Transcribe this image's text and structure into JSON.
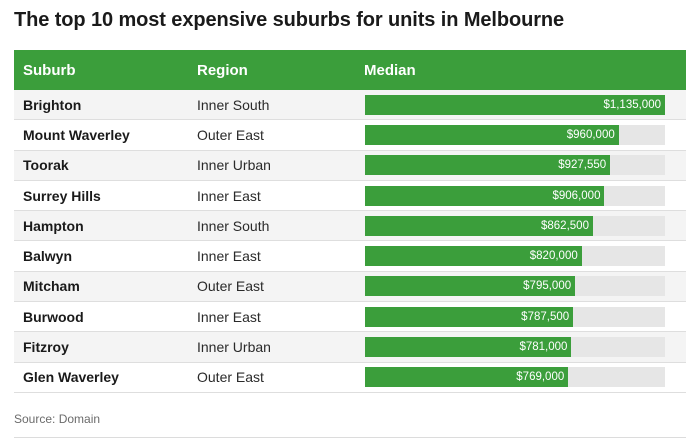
{
  "title": "The top 10 most expensive suburbs for units in Melbourne",
  "source": "Source: Domain",
  "colors": {
    "accent": "#3b9e3b",
    "track": "#e6e6e6"
  },
  "headers": {
    "suburb": "Suburb",
    "region": "Region",
    "median": "Median"
  },
  "chart_data": {
    "type": "bar",
    "title": "The top 10 most expensive suburbs for units in Melbourne",
    "xlabel": "",
    "ylabel": "",
    "ylim": [
      0,
      1135000
    ],
    "categories": [
      "Brighton",
      "Mount Waverley",
      "Toorak",
      "Surrey Hills",
      "Hampton",
      "Balwyn",
      "Mitcham",
      "Burwood",
      "Fitzroy",
      "Glen Waverley"
    ],
    "regions": [
      "Inner South",
      "Outer East",
      "Inner Urban",
      "Inner East",
      "Inner South",
      "Inner East",
      "Outer East",
      "Inner East",
      "Inner Urban",
      "Outer East"
    ],
    "values": [
      1135000,
      960000,
      927550,
      906000,
      862500,
      820000,
      795000,
      787500,
      781000,
      769000
    ],
    "labels": [
      "$1,135,000",
      "$960,000",
      "$927,550",
      "$906,000",
      "$862,500",
      "$820,000",
      "$795,000",
      "$787,500",
      "$781,000",
      "$769,000"
    ]
  }
}
